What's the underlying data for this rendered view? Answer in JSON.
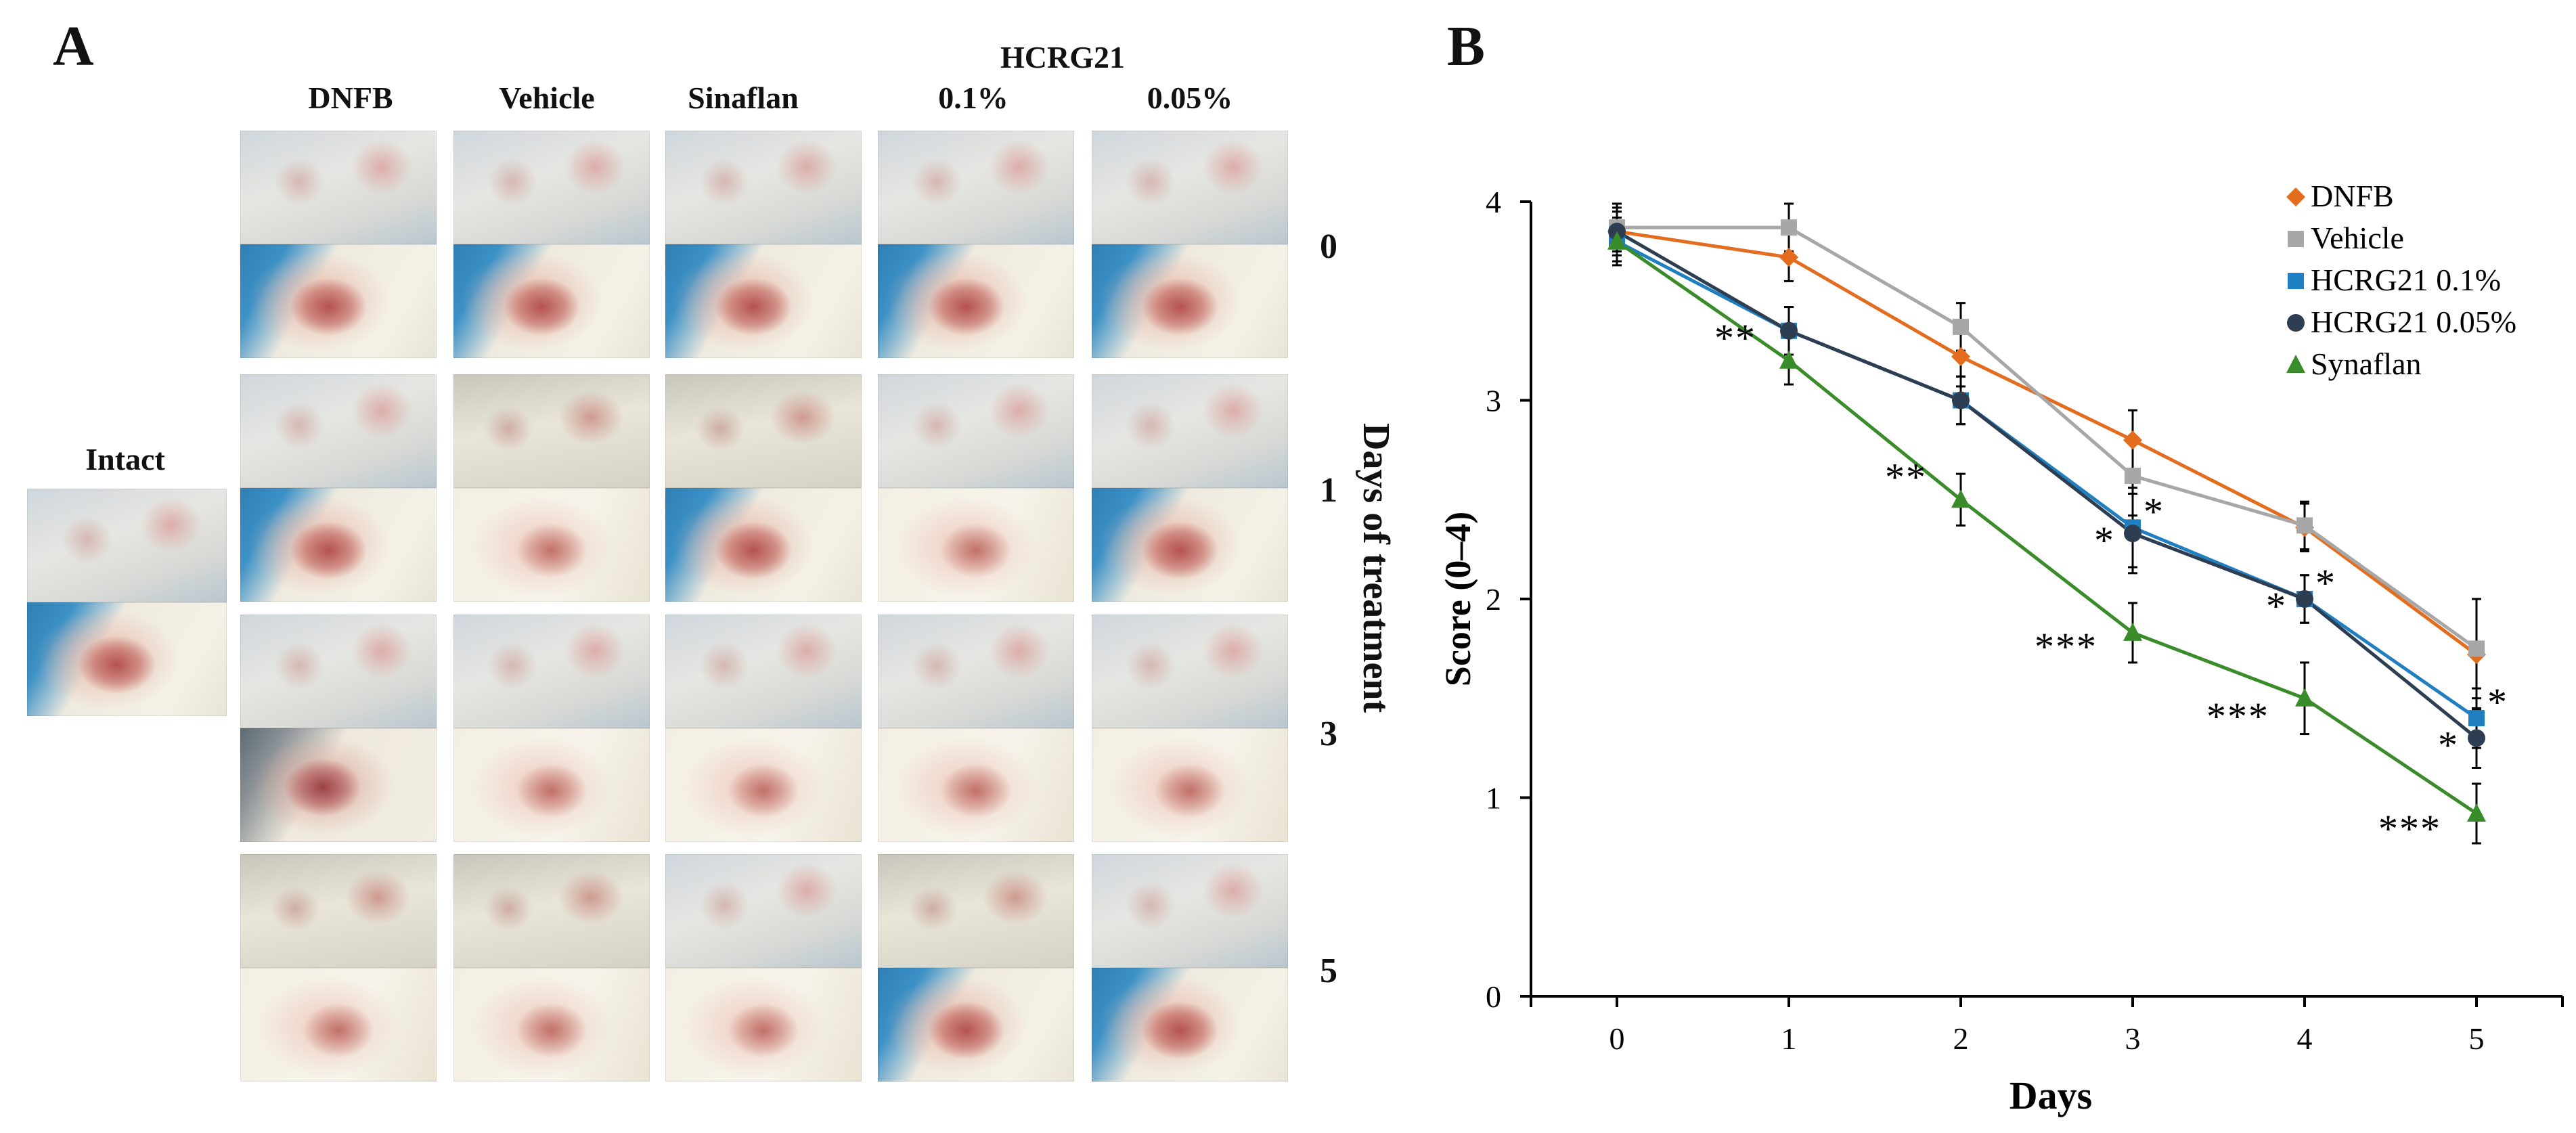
{
  "panel_a": {
    "letter": "A",
    "columns": [
      "DNFB",
      "Vehicle",
      "Sinaflan",
      "0.1%",
      "0.05%"
    ],
    "group_header": "HCRG21",
    "intact_label": "Intact",
    "days": [
      "0",
      "1",
      "3",
      "5"
    ],
    "axis_title": "Days of treatment",
    "photo_alt": "rat ear photograph"
  },
  "panel_b": {
    "letter": "B"
  },
  "colors": {
    "DNFB": "#e46c1e",
    "Vehicle": "#a7a7a7",
    "HCRG21 0.1%": "#1f7fc0",
    "HCRG21 0.05%": "#2e3e52",
    "Synaflan": "#3a8c2a"
  },
  "chart_data": {
    "type": "line",
    "title": "",
    "xlabel": "Days",
    "ylabel": "Score (0–4)",
    "x": [
      0,
      1,
      2,
      3,
      4,
      5
    ],
    "xlim": [
      -0.5,
      5.5
    ],
    "ylim": [
      0,
      4
    ],
    "yticks": [
      0,
      1,
      2,
      3,
      4
    ],
    "legend_position": "top-right",
    "series": [
      {
        "name": "DNFB",
        "marker": "diamond",
        "values": [
          3.85,
          3.72,
          3.22,
          2.8,
          2.36,
          1.72
        ],
        "error": [
          0.1,
          0.12,
          0.15,
          0.15,
          0.12,
          0.28
        ]
      },
      {
        "name": "Vehicle",
        "marker": "square",
        "values": [
          3.87,
          3.87,
          3.37,
          2.62,
          2.37,
          1.75
        ],
        "error": [
          0.12,
          0.12,
          0.12,
          0.2,
          0.12,
          0.25
        ]
      },
      {
        "name": "HCRG21 0.1%",
        "marker": "square",
        "values": [
          3.8,
          3.35,
          3.0,
          2.36,
          2.0,
          1.4
        ],
        "error": [
          0.12,
          0.12,
          0.12,
          0.2,
          0.12,
          0.15
        ]
      },
      {
        "name": "HCRG21 0.05%",
        "marker": "circle",
        "values": [
          3.85,
          3.35,
          3.0,
          2.33,
          2.0,
          1.3
        ],
        "error": [
          0.12,
          0.12,
          0.12,
          0.2,
          0.12,
          0.15
        ]
      },
      {
        "name": "Synaflan",
        "marker": "triangle",
        "values": [
          3.8,
          3.2,
          2.5,
          1.83,
          1.5,
          0.92
        ],
        "error": [
          0.1,
          0.12,
          0.13,
          0.15,
          0.18,
          0.15
        ]
      }
    ],
    "annotations": [
      {
        "text": "**",
        "x": 1,
        "y": 3.2,
        "series": "Synaflan"
      },
      {
        "text": "**",
        "x": 2,
        "y": 2.5,
        "series": "Synaflan"
      },
      {
        "text": "***",
        "x": 3,
        "y": 1.83,
        "series": "Synaflan"
      },
      {
        "text": "***",
        "x": 4,
        "y": 1.5,
        "series": "Synaflan"
      },
      {
        "text": "***",
        "x": 5,
        "y": 0.92,
        "series": "Synaflan"
      },
      {
        "text": "*",
        "x": 3,
        "y": 2.33,
        "series": "HCRG21 0.05%"
      },
      {
        "text": "*",
        "x": 3,
        "y": 2.36,
        "series": "HCRG21 0.1%"
      },
      {
        "text": "*",
        "x": 4,
        "y": 2.0,
        "series": "HCRG21 0.05%"
      },
      {
        "text": "*",
        "x": 4,
        "y": 2.0,
        "series": "HCRG21 0.1%"
      },
      {
        "text": "*",
        "x": 5,
        "y": 1.3,
        "series": "HCRG21 0.05%"
      },
      {
        "text": "*",
        "x": 5,
        "y": 1.4,
        "series": "HCRG21 0.1%"
      }
    ]
  }
}
